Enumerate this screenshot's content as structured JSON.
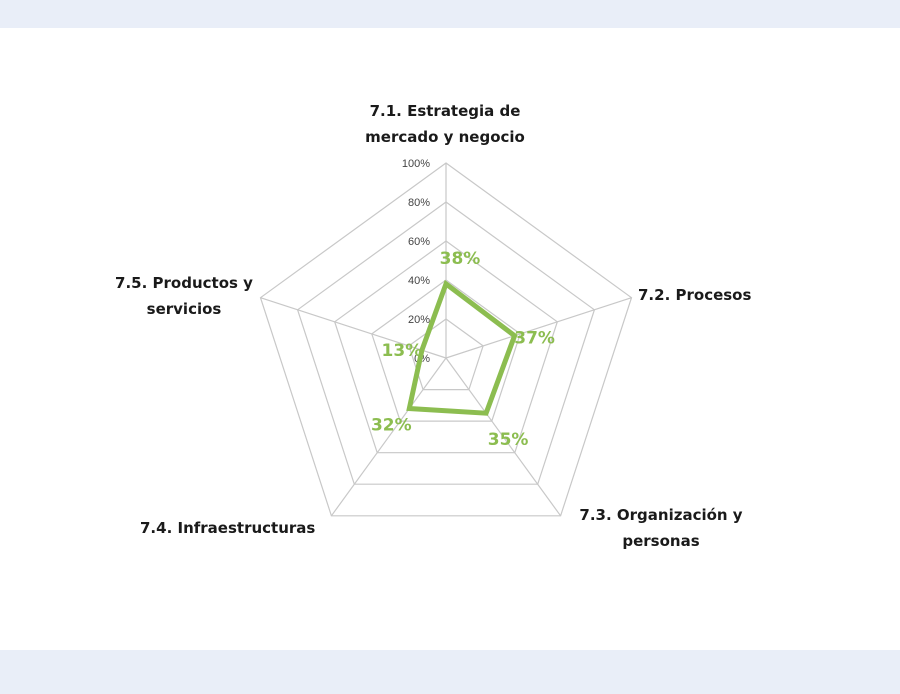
{
  "chart_data": {
    "type": "radar",
    "categories": [
      [
        "7.1. Estrategia de",
        "mercado y negocio"
      ],
      [
        "7.2. Procesos"
      ],
      [
        "7.3. Organización y",
        "personas"
      ],
      [
        "7.4. Infraestructuras"
      ],
      [
        "7.5. Productos y",
        "servicios"
      ]
    ],
    "values": [
      0.38,
      0.37,
      0.35,
      0.32,
      0.13
    ],
    "value_labels": [
      "38%",
      "37%",
      "35%",
      "32%",
      "13%"
    ],
    "ticks": [
      "0%",
      "20%",
      "40%",
      "60%",
      "80%",
      "100%"
    ],
    "rlim": [
      0,
      1
    ],
    "grid": true,
    "colors": {
      "series": "#8cbd50",
      "grid": "#c8c8c8",
      "tick_text": "#444444"
    }
  }
}
